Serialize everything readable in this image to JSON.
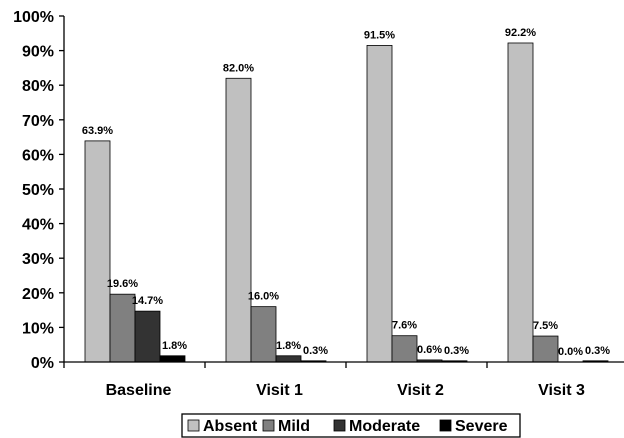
{
  "chart_data": {
    "type": "bar",
    "title": "",
    "xlabel": "",
    "ylabel": "",
    "categories": [
      "Baseline",
      "Visit 1",
      "Visit 2",
      "Visit 3"
    ],
    "ylim": [
      0,
      100
    ],
    "yticks": [
      "0%",
      "10%",
      "20%",
      "30%",
      "40%",
      "50%",
      "60%",
      "70%",
      "80%",
      "90%",
      "100%"
    ],
    "grid": false,
    "legend_position": "bottom",
    "series": [
      {
        "name": "Absent",
        "color": "#c0c0c0",
        "values": [
          63.9,
          82.0,
          91.5,
          92.2
        ],
        "labels": [
          "63.9%",
          "82.0%",
          "91.5%",
          "92.2%"
        ]
      },
      {
        "name": "Mild",
        "color": "#808080",
        "values": [
          19.6,
          16.0,
          7.6,
          7.5
        ],
        "labels": [
          "19.6%",
          "16.0%",
          "7.6%",
          "7.5%"
        ]
      },
      {
        "name": "Moderate",
        "color": "#333333",
        "values": [
          14.7,
          1.8,
          0.6,
          0.0
        ],
        "labels": [
          "14.7%",
          "1.8%",
          "0.6%",
          "0.0%"
        ]
      },
      {
        "name": "Severe",
        "color": "#000000",
        "values": [
          1.8,
          0.3,
          0.3,
          0.3
        ],
        "labels": [
          "1.8%",
          "0.3%",
          "0.3%",
          "0.3%"
        ]
      }
    ]
  }
}
